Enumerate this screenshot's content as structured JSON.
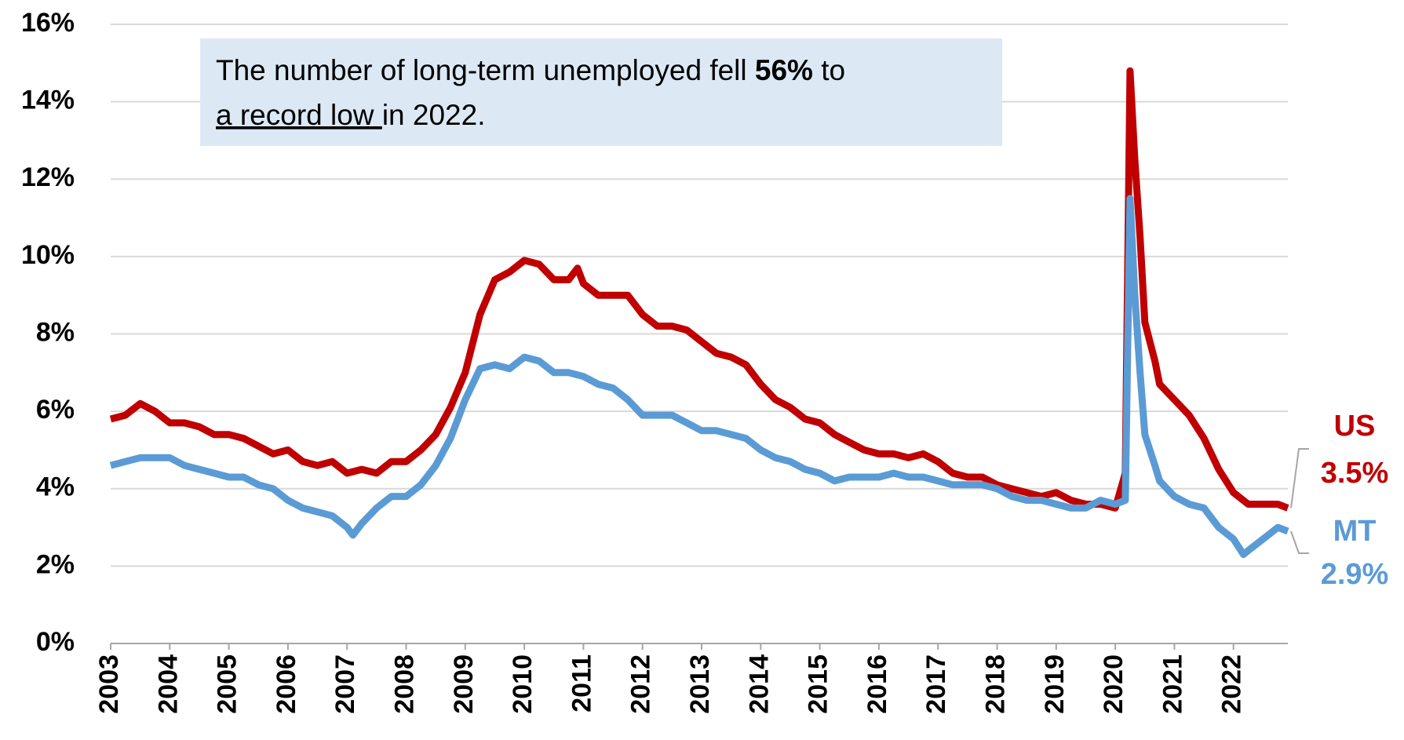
{
  "chart_data": {
    "type": "line",
    "annotation": [
      "The number of long-term unemployed fell ",
      "56%",
      " to",
      "a record low ",
      "in 2022."
    ],
    "xlim": [
      2003,
      2022.92
    ],
    "xticks": [
      2003,
      2004,
      2005,
      2006,
      2007,
      2008,
      2009,
      2010,
      2011,
      2012,
      2013,
      2014,
      2015,
      2016,
      2017,
      2018,
      2019,
      2020,
      2021,
      2022
    ],
    "ylim": [
      0,
      16
    ],
    "yticks": [
      {
        "value": 0,
        "label": "0%"
      },
      {
        "value": 2,
        "label": "2%"
      },
      {
        "value": 4,
        "label": "4%"
      },
      {
        "value": 6,
        "label": "6%"
      },
      {
        "value": 8,
        "label": "8%"
      },
      {
        "value": 10,
        "label": "10%"
      },
      {
        "value": 12,
        "label": "12%"
      },
      {
        "value": 14,
        "label": "14%"
      },
      {
        "value": 16,
        "label": "16%"
      }
    ],
    "grid": true,
    "series": [
      {
        "name": "US",
        "color": "#c00000",
        "end_label": "3.5%",
        "x": [
          2003.0,
          2003.25,
          2003.5,
          2003.75,
          2004.0,
          2004.25,
          2004.5,
          2004.75,
          2005.0,
          2005.25,
          2005.5,
          2005.75,
          2006.0,
          2006.25,
          2006.5,
          2006.75,
          2007.0,
          2007.25,
          2007.5,
          2007.75,
          2008.0,
          2008.25,
          2008.5,
          2008.75,
          2009.0,
          2009.25,
          2009.5,
          2009.75,
          2010.0,
          2010.25,
          2010.5,
          2010.75,
          2010.9,
          2011.0,
          2011.25,
          2011.5,
          2011.75,
          2012.0,
          2012.25,
          2012.5,
          2012.75,
          2013.0,
          2013.25,
          2013.5,
          2013.75,
          2014.0,
          2014.25,
          2014.5,
          2014.75,
          2015.0,
          2015.25,
          2015.5,
          2015.75,
          2016.0,
          2016.25,
          2016.5,
          2016.75,
          2017.0,
          2017.25,
          2017.5,
          2017.75,
          2018.0,
          2018.25,
          2018.5,
          2018.75,
          2019.0,
          2019.25,
          2019.5,
          2019.75,
          2020.0,
          2020.17,
          2020.25,
          2020.33,
          2020.42,
          2020.5,
          2020.67,
          2020.75,
          2021.0,
          2021.25,
          2021.5,
          2021.75,
          2022.0,
          2022.25,
          2022.5,
          2022.75,
          2022.92
        ],
        "values": [
          5.8,
          5.9,
          6.2,
          6.0,
          5.7,
          5.7,
          5.6,
          5.4,
          5.4,
          5.3,
          5.1,
          4.9,
          5.0,
          4.7,
          4.6,
          4.7,
          4.4,
          4.5,
          4.4,
          4.7,
          4.7,
          5.0,
          5.4,
          6.1,
          7.0,
          8.5,
          9.4,
          9.6,
          9.9,
          9.8,
          9.4,
          9.4,
          9.7,
          9.3,
          9.0,
          9.0,
          9.0,
          8.5,
          8.2,
          8.2,
          8.1,
          7.8,
          7.5,
          7.4,
          7.2,
          6.7,
          6.3,
          6.1,
          5.8,
          5.7,
          5.4,
          5.2,
          5.0,
          4.9,
          4.9,
          4.8,
          4.9,
          4.7,
          4.4,
          4.3,
          4.3,
          4.1,
          4.0,
          3.9,
          3.8,
          3.9,
          3.7,
          3.6,
          3.6,
          3.5,
          4.4,
          14.8,
          12.5,
          10.5,
          8.3,
          7.3,
          6.7,
          6.3,
          5.9,
          5.3,
          4.5,
          3.9,
          3.6,
          3.6,
          3.6,
          3.5
        ]
      },
      {
        "name": "MT",
        "color": "#5b9bd5",
        "end_label": "2.9%",
        "x": [
          2003.0,
          2003.25,
          2003.5,
          2003.75,
          2004.0,
          2004.25,
          2004.5,
          2004.75,
          2005.0,
          2005.25,
          2005.5,
          2005.75,
          2006.0,
          2006.25,
          2006.5,
          2006.75,
          2007.0,
          2007.1,
          2007.25,
          2007.5,
          2007.75,
          2008.0,
          2008.25,
          2008.5,
          2008.75,
          2009.0,
          2009.25,
          2009.5,
          2009.75,
          2010.0,
          2010.25,
          2010.5,
          2010.75,
          2011.0,
          2011.25,
          2011.5,
          2011.75,
          2012.0,
          2012.25,
          2012.5,
          2012.75,
          2013.0,
          2013.25,
          2013.5,
          2013.75,
          2014.0,
          2014.25,
          2014.5,
          2014.75,
          2015.0,
          2015.25,
          2015.5,
          2015.75,
          2016.0,
          2016.25,
          2016.5,
          2016.75,
          2017.0,
          2017.25,
          2017.5,
          2017.75,
          2018.0,
          2018.25,
          2018.5,
          2018.75,
          2019.0,
          2019.25,
          2019.5,
          2019.75,
          2020.0,
          2020.17,
          2020.25,
          2020.33,
          2020.42,
          2020.5,
          2020.67,
          2020.75,
          2021.0,
          2021.25,
          2021.5,
          2021.75,
          2022.0,
          2022.17,
          2022.25,
          2022.5,
          2022.75,
          2022.92
        ],
        "values": [
          4.6,
          4.7,
          4.8,
          4.8,
          4.8,
          4.6,
          4.5,
          4.4,
          4.3,
          4.3,
          4.1,
          4.0,
          3.7,
          3.5,
          3.4,
          3.3,
          3.0,
          2.8,
          3.1,
          3.5,
          3.8,
          3.8,
          4.1,
          4.6,
          5.3,
          6.3,
          7.1,
          7.2,
          7.1,
          7.4,
          7.3,
          7.0,
          7.0,
          6.9,
          6.7,
          6.6,
          6.3,
          5.9,
          5.9,
          5.9,
          5.7,
          5.5,
          5.5,
          5.4,
          5.3,
          5.0,
          4.8,
          4.7,
          4.5,
          4.4,
          4.2,
          4.3,
          4.3,
          4.3,
          4.4,
          4.3,
          4.3,
          4.2,
          4.1,
          4.1,
          4.1,
          4.0,
          3.8,
          3.7,
          3.7,
          3.6,
          3.5,
          3.5,
          3.7,
          3.6,
          3.7,
          11.5,
          9.0,
          7.0,
          5.4,
          4.6,
          4.2,
          3.8,
          3.6,
          3.5,
          3.0,
          2.7,
          2.3,
          2.4,
          2.7,
          3.0,
          2.9
        ]
      }
    ]
  }
}
